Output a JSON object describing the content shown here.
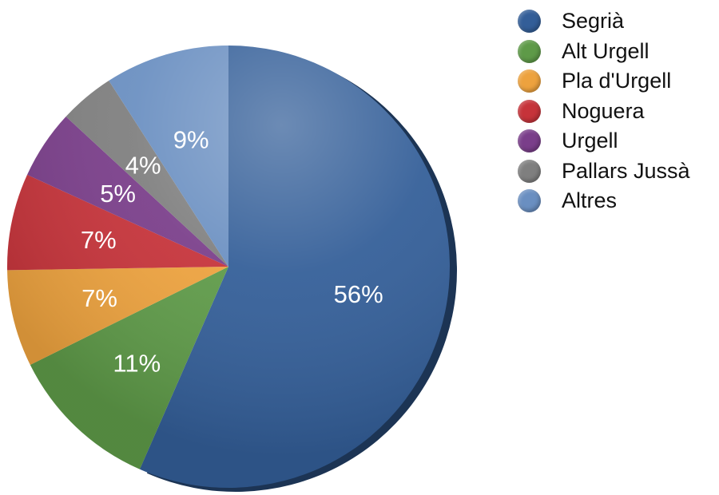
{
  "chart_data": {
    "type": "pie",
    "title": "",
    "legend_position": "top-right",
    "start_angle_deg": 0,
    "direction": "clockwise",
    "slices": [
      {
        "name": "Segrià",
        "value": 56,
        "label": "56%",
        "color": "#335E98"
      },
      {
        "name": "Alt Urgell",
        "value": 11,
        "label": "11%",
        "color": "#5E9A48"
      },
      {
        "name": "Pla d'Urgell",
        "value": 7,
        "label": "7%",
        "color": "#EDA23E"
      },
      {
        "name": "Noguera",
        "value": 7,
        "label": "7%",
        "color": "#C6333A"
      },
      {
        "name": "Urgell",
        "value": 5,
        "label": "5%",
        "color": "#7A3E8A"
      },
      {
        "name": "Pallars Jussà",
        "value": 4,
        "label": "4%",
        "color": "#7F7F7F"
      },
      {
        "name": "Altres",
        "value": 9,
        "label": "9%",
        "color": "#6A8FC1"
      }
    ]
  }
}
